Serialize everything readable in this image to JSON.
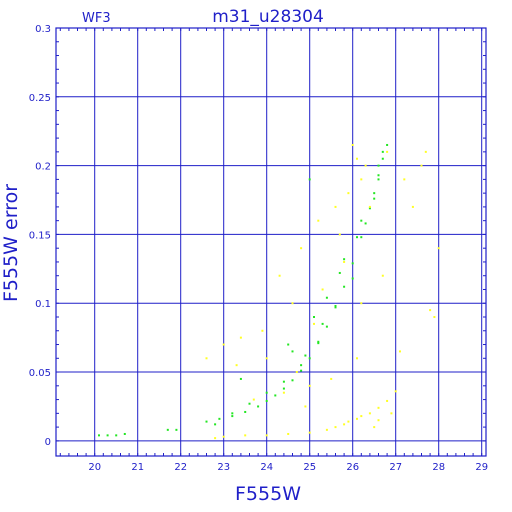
{
  "chart_data": {
    "type": "scatter",
    "title": "m31_u28304",
    "panel_label": "WF3",
    "xlabel": "F555W",
    "ylabel": "F555W error",
    "xlim": [
      19.1,
      29.1
    ],
    "ylim": [
      -0.011,
      0.3
    ],
    "x_ticks": [
      20,
      21,
      22,
      23,
      24,
      25,
      26,
      27,
      28,
      29
    ],
    "y_ticks": [
      0,
      0.05,
      0.1,
      0.15,
      0.2,
      0.25,
      0.3
    ],
    "y_tick_labels": [
      "0",
      "0.05",
      "0.1",
      "0.15",
      "0.2",
      "0.25",
      "0.3"
    ],
    "grid": true,
    "colors": {
      "axis": "#1f1fc8",
      "grid": "#1f1fc8",
      "green": "#22e622",
      "yellow": "#ffff22"
    },
    "series": [
      {
        "color": "green",
        "x": [
          20.1,
          20.3,
          20.5,
          20.7,
          21.7,
          21.9,
          22.6,
          22.9,
          23.2,
          23.5,
          23.8,
          24.0,
          24.2,
          24.4,
          24.6,
          24.8,
          25.0,
          25.2,
          25.4,
          25.6,
          25.8,
          26.0,
          26.2,
          26.4,
          26.5,
          26.6,
          26.7,
          22.8,
          23.2,
          23.6,
          24.0,
          24.4,
          24.8,
          25.2,
          25.6,
          26.0,
          26.3,
          26.6,
          23.4,
          24.6,
          25.1,
          25.4,
          25.8,
          26.1,
          24.9,
          25.3,
          25.7,
          26.5,
          26.6,
          26.7,
          26.8,
          26.2,
          25.0,
          24.5
        ],
        "y": [
          0.004,
          0.004,
          0.004,
          0.005,
          0.008,
          0.008,
          0.014,
          0.016,
          0.018,
          0.021,
          0.025,
          0.029,
          0.033,
          0.038,
          0.044,
          0.051,
          0.06,
          0.071,
          0.083,
          0.097,
          0.112,
          0.129,
          0.148,
          0.169,
          0.18,
          0.193,
          0.205,
          0.012,
          0.02,
          0.027,
          0.035,
          0.043,
          0.055,
          0.072,
          0.098,
          0.118,
          0.158,
          0.2,
          0.045,
          0.065,
          0.09,
          0.104,
          0.132,
          0.148,
          0.062,
          0.085,
          0.122,
          0.176,
          0.19,
          0.21,
          0.215,
          0.16,
          0.19,
          0.07
        ]
      },
      {
        "color": "yellow",
        "x": [
          22.8,
          23.0,
          23.5,
          24.0,
          24.5,
          25.0,
          25.4,
          25.8,
          26.1,
          26.4,
          26.6,
          26.8,
          27.0,
          25.6,
          25.9,
          26.2,
          24.3,
          24.8,
          25.2,
          25.6,
          25.9,
          26.3,
          26.8,
          27.2,
          27.4,
          27.6,
          27.7,
          26.0,
          26.1,
          26.2,
          24.6,
          23.9,
          23.4,
          23.0,
          25.8,
          24.0,
          24.7,
          25.3,
          25.1,
          26.6,
          26.9,
          27.1,
          27.9,
          26.2,
          25.0,
          24.4,
          23.7,
          26.5,
          26.1,
          25.5,
          24.9,
          28.0,
          27.8,
          26.7,
          25.7,
          26.4,
          23.3,
          22.6
        ],
        "y": [
          0.002,
          0.003,
          0.004,
          0.004,
          0.005,
          0.006,
          0.008,
          0.012,
          0.016,
          0.02,
          0.024,
          0.029,
          0.036,
          0.01,
          0.014,
          0.018,
          0.12,
          0.14,
          0.16,
          0.17,
          0.18,
          0.2,
          0.21,
          0.19,
          0.17,
          0.2,
          0.21,
          0.215,
          0.205,
          0.19,
          0.1,
          0.08,
          0.075,
          0.07,
          0.13,
          0.06,
          0.05,
          0.11,
          0.085,
          0.015,
          0.02,
          0.065,
          0.09,
          0.1,
          0.04,
          0.035,
          0.03,
          0.01,
          0.06,
          0.045,
          0.025,
          0.14,
          0.095,
          0.12,
          0.15,
          0.17,
          0.055,
          0.06
        ]
      }
    ]
  }
}
